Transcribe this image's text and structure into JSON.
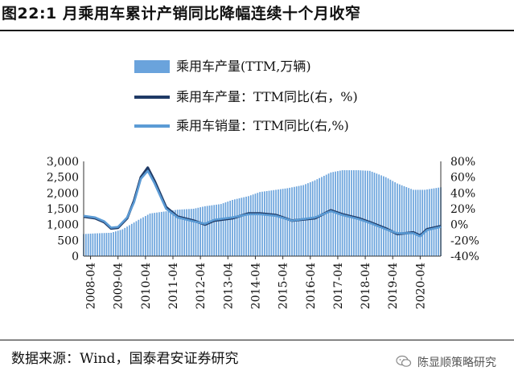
{
  "header": {
    "title": "图22:1 月乘用车累计产销同比降幅连续十个月收窄"
  },
  "footer": {
    "source": "数据来源：Wind，国泰君安证券研究",
    "watermark": "陈显顺策略研究"
  },
  "colors": {
    "bar": "#6aa3dc",
    "line_prod": "#1f3a66",
    "line_sales": "#5b9bd5"
  },
  "chart_data": {
    "type": "bar+line",
    "title": "",
    "legend": [
      {
        "name": "乘用车产量(TTM,万辆)",
        "kind": "bar"
      },
      {
        "name": "乘用车产量：TTM同比(右，%)",
        "kind": "line"
      },
      {
        "name": "乘用车销量：TTM同比(右,%)",
        "kind": "line"
      }
    ],
    "legend_position": "top-center",
    "y_left": {
      "min": 0,
      "max": 3000,
      "ticks": [
        "0",
        "500",
        "1,000",
        "1,500",
        "2,000",
        "2,500",
        "3,000"
      ]
    },
    "y_right": {
      "min": -40,
      "max": 80,
      "ticks": [
        "-40%",
        "-20%",
        "0%",
        "20%",
        "40%",
        "60%",
        "80%"
      ]
    },
    "x_ticks": [
      "2008-04",
      "2009-04",
      "2010-04",
      "2011-04",
      "2012-04",
      "2013-04",
      "2014-04",
      "2015-04",
      "2016-04",
      "2017-04",
      "2018-04",
      "2019-04",
      "2020-04"
    ],
    "x_range": [
      "2008-01",
      "2021-01"
    ],
    "bar_series": {
      "name": "乘用车产量(TTM,万辆)",
      "points": [
        [
          "2008-01",
          700
        ],
        [
          "2008-06",
          720
        ],
        [
          "2009-01",
          740
        ],
        [
          "2009-06",
          850
        ],
        [
          "2010-01",
          1150
        ],
        [
          "2010-06",
          1350
        ],
        [
          "2011-01",
          1420
        ],
        [
          "2011-06",
          1470
        ],
        [
          "2012-01",
          1500
        ],
        [
          "2012-06",
          1580
        ],
        [
          "2013-01",
          1650
        ],
        [
          "2013-06",
          1780
        ],
        [
          "2014-01",
          1900
        ],
        [
          "2014-06",
          2030
        ],
        [
          "2015-01",
          2100
        ],
        [
          "2015-06",
          2150
        ],
        [
          "2016-01",
          2250
        ],
        [
          "2016-06",
          2400
        ],
        [
          "2017-01",
          2650
        ],
        [
          "2017-06",
          2720
        ],
        [
          "2018-01",
          2720
        ],
        [
          "2018-06",
          2700
        ],
        [
          "2019-01",
          2500
        ],
        [
          "2019-06",
          2300
        ],
        [
          "2020-01",
          2100
        ],
        [
          "2020-06",
          2100
        ],
        [
          "2021-01",
          2180
        ]
      ]
    },
    "line_series": [
      {
        "name": "乘用车产量：TTM同比(右，%)",
        "points": [
          [
            "2008-01",
            10
          ],
          [
            "2008-06",
            8
          ],
          [
            "2008-10",
            3
          ],
          [
            "2009-01",
            -5
          ],
          [
            "2009-04",
            -4
          ],
          [
            "2009-08",
            8
          ],
          [
            "2009-11",
            30
          ],
          [
            "2010-02",
            60
          ],
          [
            "2010-05",
            72
          ],
          [
            "2010-08",
            55
          ],
          [
            "2011-01",
            22
          ],
          [
            "2011-06",
            10
          ],
          [
            "2012-01",
            5
          ],
          [
            "2012-06",
            0
          ],
          [
            "2012-10",
            5
          ],
          [
            "2013-06",
            8
          ],
          [
            "2014-01",
            14
          ],
          [
            "2014-06",
            14
          ],
          [
            "2015-01",
            12
          ],
          [
            "2015-08",
            5
          ],
          [
            "2016-06",
            8
          ],
          [
            "2017-01",
            18
          ],
          [
            "2017-06",
            13
          ],
          [
            "2018-01",
            8
          ],
          [
            "2018-06",
            3
          ],
          [
            "2019-01",
            -5
          ],
          [
            "2019-06",
            -12
          ],
          [
            "2020-01",
            -10
          ],
          [
            "2020-04",
            -14
          ],
          [
            "2020-07",
            -6
          ],
          [
            "2021-01",
            -2
          ]
        ]
      },
      {
        "name": "乘用车销量：TTM同比(右,%)",
        "points": [
          [
            "2008-01",
            11
          ],
          [
            "2008-06",
            9
          ],
          [
            "2008-10",
            4
          ],
          [
            "2009-01",
            -4
          ],
          [
            "2009-04",
            -3
          ],
          [
            "2009-08",
            9
          ],
          [
            "2009-11",
            28
          ],
          [
            "2010-02",
            58
          ],
          [
            "2010-05",
            68
          ],
          [
            "2010-08",
            52
          ],
          [
            "2011-01",
            20
          ],
          [
            "2011-06",
            9
          ],
          [
            "2012-01",
            4
          ],
          [
            "2012-06",
            1
          ],
          [
            "2012-10",
            6
          ],
          [
            "2013-06",
            9
          ],
          [
            "2014-01",
            13
          ],
          [
            "2014-06",
            13
          ],
          [
            "2015-01",
            11
          ],
          [
            "2015-08",
            5
          ],
          [
            "2016-06",
            9
          ],
          [
            "2017-01",
            17
          ],
          [
            "2017-06",
            12
          ],
          [
            "2018-01",
            7
          ],
          [
            "2018-06",
            2
          ],
          [
            "2019-01",
            -6
          ],
          [
            "2019-06",
            -11
          ],
          [
            "2020-01",
            -11
          ],
          [
            "2020-04",
            -15
          ],
          [
            "2020-07",
            -7
          ],
          [
            "2021-01",
            -3
          ]
        ]
      }
    ]
  }
}
